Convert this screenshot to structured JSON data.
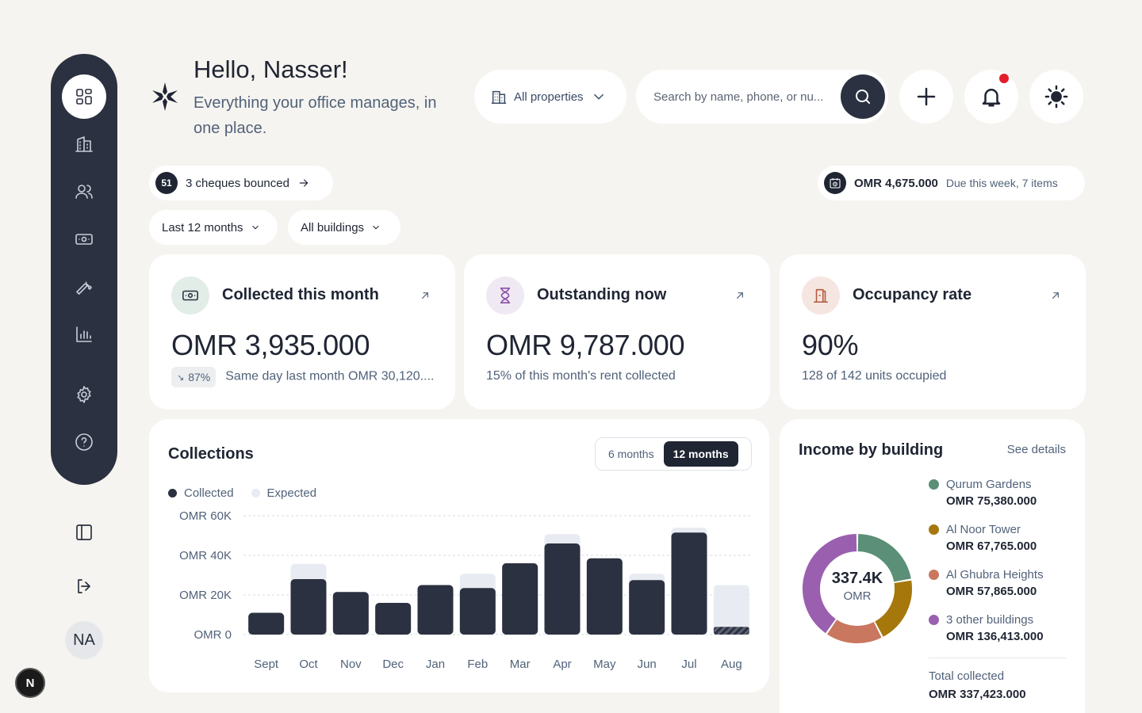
{
  "header": {
    "greeting": "Hello, Nasser!",
    "subtitle": "Everything your office manages, in one place.",
    "properties_filter": "All properties",
    "search_placeholder": "Search by name, phone, or nu..."
  },
  "sidebar": {
    "items": [
      {
        "icon": "dashboard-icon"
      },
      {
        "icon": "building-icon"
      },
      {
        "icon": "users-icon"
      },
      {
        "icon": "payments-icon"
      },
      {
        "icon": "wrench-icon"
      },
      {
        "icon": "reports-icon"
      },
      {
        "icon": "gear-icon"
      },
      {
        "icon": "help-icon"
      }
    ],
    "avatar_initials": "NA",
    "dev_badge": "N"
  },
  "alerts": {
    "cheque_count": "51",
    "cheque_text": "3 cheques bounced",
    "due_amount": "OMR 4,675.000",
    "due_note": "Due this week, 7 items"
  },
  "filters": {
    "period": "Last 12 months",
    "buildings": "All buildings"
  },
  "kpis": {
    "collected": {
      "title": "Collected this month",
      "value": "OMR 3,935.000",
      "trend": "87%",
      "note": "Same day last month OMR 30,120...."
    },
    "outstanding": {
      "title": "Outstanding now",
      "value": "OMR 9,787.000",
      "note": "15% of this month's rent collected"
    },
    "occupancy": {
      "title": "Occupancy rate",
      "value": "90%",
      "note": "128 of 142 units occupied"
    }
  },
  "collections": {
    "title": "Collections",
    "toggle": {
      "short": "6 months",
      "long": "12 months",
      "selected": "12 months"
    },
    "legend": {
      "collected": "Collected",
      "expected": "Expected"
    }
  },
  "chart_data": {
    "type": "bar",
    "categories": [
      "Sept",
      "Oct",
      "Nov",
      "Dec",
      "Jan",
      "Feb",
      "Mar",
      "Apr",
      "May",
      "Jun",
      "Jul",
      "Aug"
    ],
    "series": [
      {
        "name": "Collected",
        "values": [
          11000,
          28000,
          21500,
          16000,
          25000,
          23500,
          36000,
          46000,
          38500,
          27500,
          51500,
          3900
        ]
      },
      {
        "name": "Expected",
        "values": [
          11000,
          35700,
          21500,
          16000,
          25000,
          30700,
          36000,
          50700,
          38500,
          30700,
          54000,
          25000
        ]
      }
    ],
    "yticks": [
      "OMR 0",
      "OMR 20K",
      "OMR 40K",
      "OMR 60K"
    ],
    "ylim": [
      0,
      60000
    ],
    "grid": true,
    "legend_position": "top-left",
    "colors": {
      "collected": "#2b3140",
      "expected": "#e8ecf2"
    }
  },
  "income": {
    "title": "Income by building",
    "see_details": "See details",
    "total_short": "337.4K",
    "total_unit": "OMR",
    "buildings": [
      {
        "name": "Qurum Gardens",
        "value": "OMR 75,380.000",
        "amount": 75380,
        "color": "#5b8f78"
      },
      {
        "name": "Al Noor Tower",
        "value": "OMR 67,765.000",
        "amount": 67765,
        "color": "#a6780c"
      },
      {
        "name": "Al Ghubra Heights",
        "value": "OMR 57,865.000",
        "amount": 57865,
        "color": "#c9775e"
      },
      {
        "name": "3 other buildings",
        "value": "OMR 136,413.000",
        "amount": 136413,
        "color": "#9b5fb0"
      }
    ],
    "total_label": "Total collected",
    "total_value": "OMR 337,423.000"
  }
}
